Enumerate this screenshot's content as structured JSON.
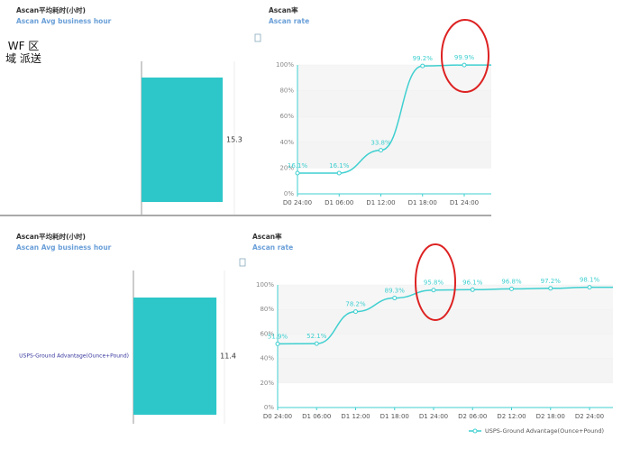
{
  "chart_data": [
    {
      "type": "bar",
      "orientation": "horizontal",
      "title": "Ascan平均耗时(小时)",
      "subtitle": "Ascan Avg business hour",
      "categories": [
        "WF 区域 派送"
      ],
      "values": [
        15.3
      ],
      "color": "#2ec7c9",
      "xlim": [
        0,
        17.5
      ]
    },
    {
      "type": "line",
      "title": "Ascan率",
      "subtitle": "Ascan rate",
      "categories": [
        "D0 24:00",
        "D1 06:00",
        "D1 12:00",
        "D1 18:00",
        "D1 24:00"
      ],
      "series": [
        {
          "color": "#3fcfd0",
          "values": [
            16.1,
            16.1,
            33.8,
            99.2,
            99.9
          ],
          "value_labels": [
            "16.1%",
            "16.1%",
            "33.8%",
            "99.2%",
            "99.9%"
          ]
        }
      ],
      "ylim": [
        0,
        100
      ],
      "yticks": [
        {
          "value": 0,
          "label": "0%"
        },
        {
          "value": 20,
          "label": "20%"
        },
        {
          "value": 40,
          "label": "40%"
        },
        {
          "value": 60,
          "label": "60%"
        },
        {
          "value": 80,
          "label": "80%"
        },
        {
          "value": 100,
          "label": "100%"
        }
      ],
      "grid": true
    },
    {
      "type": "bar",
      "orientation": "horizontal",
      "title": "Ascan平均耗时(小时)",
      "subtitle": "Ascan Avg business hour",
      "categories": [
        "USPS-Ground Advantage(Ounce+Pound)"
      ],
      "values": [
        11.4
      ],
      "color": "#2ec7c9",
      "xlim": [
        0,
        12.5
      ]
    },
    {
      "type": "line",
      "title": "Ascan率",
      "subtitle": "Ascan rate",
      "categories": [
        "D0 24:00",
        "D1 06:00",
        "D1 12:00",
        "D1 18:00",
        "D1 24:00",
        "D2 06:00",
        "D2 12:00",
        "D2 18:00",
        "D2 24:00"
      ],
      "series": [
        {
          "name": "USPS-Ground Advantage(Ounce+Pound)",
          "color": "#3fcfd0",
          "values": [
            51.9,
            52.1,
            78.2,
            89.3,
            95.8,
            96.1,
            96.8,
            97.2,
            98.1
          ],
          "value_labels": [
            "51.9%",
            "52.1%",
            "78.2%",
            "89.3%",
            "95.8%",
            "96.1%",
            "96.8%",
            "97.2%",
            "98.1%"
          ]
        }
      ],
      "ylim": [
        0,
        100
      ],
      "yticks": [
        {
          "value": 0,
          "label": "0%"
        },
        {
          "value": 20,
          "label": "20%"
        },
        {
          "value": 40,
          "label": "40%"
        },
        {
          "value": 60,
          "label": "60%"
        },
        {
          "value": 80,
          "label": "80%"
        },
        {
          "value": 100,
          "label": "100%"
        }
      ],
      "grid": true
    }
  ]
}
